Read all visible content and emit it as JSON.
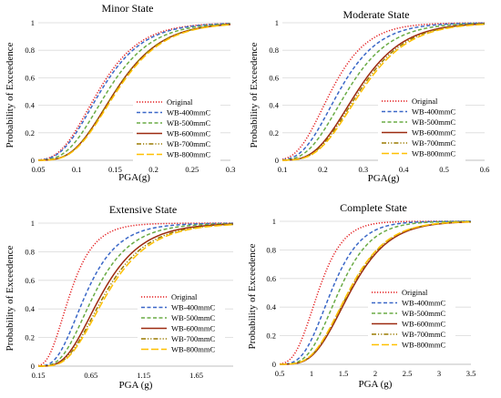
{
  "chart_data": [
    {
      "type": "line",
      "title": "Minor State",
      "xlabel": "PGA(g)",
      "ylabel": "Probability of Exceedence",
      "xlim": [
        0.05,
        0.3
      ],
      "ylim": [
        0,
        1
      ],
      "xticks": [
        "0.05",
        "0.1",
        "0.15",
        "0.2",
        "0.25",
        "0.3"
      ],
      "yticks": [
        "0",
        "0.2",
        "0.4",
        "0.6",
        "0.8",
        "1"
      ],
      "grid": "horizontal",
      "legend_position": "lower-right",
      "series": [
        {
          "name": "Original",
          "median": 0.128,
          "beta": 0.33
        },
        {
          "name": "WB-400mmC",
          "median": 0.131,
          "beta": 0.33
        },
        {
          "name": "WB-500mmC",
          "median": 0.14,
          "beta": 0.32
        },
        {
          "name": "WB-600mmC",
          "median": 0.15,
          "beta": 0.31
        },
        {
          "name": "WB-700mmC",
          "median": 0.15,
          "beta": 0.31
        },
        {
          "name": "WB-800mmC",
          "median": 0.152,
          "beta": 0.31
        }
      ]
    },
    {
      "type": "line",
      "title": "Moderate State",
      "xlabel": "PGA(g)",
      "ylabel": "Probability of Exceedence",
      "xlim": [
        0.1,
        0.6
      ],
      "ylim": [
        0,
        1
      ],
      "xticks": [
        "0.1",
        "0.2",
        "0.3",
        "0.4",
        "0.5",
        "0.6"
      ],
      "yticks": [
        "0",
        "0.2",
        "0.4",
        "0.6",
        "0.8",
        "1"
      ],
      "grid": "horizontal",
      "legend_position": "lower-right",
      "series": [
        {
          "name": "Original",
          "median": 0.22,
          "beta": 0.32
        },
        {
          "name": "WB-400mmC",
          "median": 0.24,
          "beta": 0.32
        },
        {
          "name": "WB-500mmC",
          "median": 0.26,
          "beta": 0.32
        },
        {
          "name": "WB-600mmC",
          "median": 0.285,
          "beta": 0.31
        },
        {
          "name": "WB-700mmC",
          "median": 0.29,
          "beta": 0.31
        },
        {
          "name": "WB-800mmC",
          "median": 0.295,
          "beta": 0.31
        }
      ]
    },
    {
      "type": "line",
      "title": "Extensive State",
      "xlabel": "PGA (g)",
      "ylabel": "Probability of Exceedence",
      "xlim": [
        0.15,
        2.0
      ],
      "ylim": [
        0,
        1
      ],
      "xticks": [
        "0.15",
        "0.65",
        "1.15",
        "1.65"
      ],
      "xtick_values": [
        0.15,
        0.65,
        1.15,
        1.65
      ],
      "yticks": [
        "0",
        "0.2",
        "0.4",
        "0.6",
        "0.8",
        "1"
      ],
      "grid": "horizontal",
      "legend_position": "lower-right",
      "series": [
        {
          "name": "Original",
          "median": 0.45,
          "beta": 0.4
        },
        {
          "name": "WB-400mmC",
          "median": 0.6,
          "beta": 0.4
        },
        {
          "name": "WB-500mmC",
          "median": 0.68,
          "beta": 0.4
        },
        {
          "name": "WB-600mmC",
          "median": 0.75,
          "beta": 0.4
        },
        {
          "name": "WB-700mmC",
          "median": 0.78,
          "beta": 0.4
        },
        {
          "name": "WB-800mmC",
          "median": 0.8,
          "beta": 0.4
        }
      ]
    },
    {
      "type": "line",
      "title": "Complete State",
      "xlabel": "PGA (g)",
      "ylabel": "Probability of Exceedence",
      "xlim": [
        0.5,
        3.5
      ],
      "ylim": [
        0,
        1
      ],
      "xticks": [
        "0.5",
        "1",
        "1.5",
        "2",
        "2.5",
        "3",
        "3.5"
      ],
      "yticks": [
        "0",
        "0.2",
        "0.4",
        "0.6",
        "0.8",
        "1"
      ],
      "grid": "horizontal",
      "legend_position": "lower-right",
      "series": [
        {
          "name": "Original",
          "median": 1.1,
          "beta": 0.28
        },
        {
          "name": "WB-400mmC",
          "median": 1.3,
          "beta": 0.28
        },
        {
          "name": "WB-500mmC",
          "median": 1.42,
          "beta": 0.28
        },
        {
          "name": "WB-600mmC",
          "median": 1.6,
          "beta": 0.3
        },
        {
          "name": "WB-700mmC",
          "median": 1.58,
          "beta": 0.3
        },
        {
          "name": "WB-800mmC",
          "median": 1.57,
          "beta": 0.3
        }
      ]
    }
  ],
  "series_styles": [
    {
      "color": "#e31a1c",
      "dash": "dotted"
    },
    {
      "color": "#3a67c7",
      "dash": "dashed"
    },
    {
      "color": "#6aab45",
      "dash": "dashed"
    },
    {
      "color": "#9c2a10",
      "dash": "solid"
    },
    {
      "color": "#9a7a00",
      "dash": "dash-dot-dot"
    },
    {
      "color": "#ffc000",
      "dash": "long-dash"
    }
  ]
}
